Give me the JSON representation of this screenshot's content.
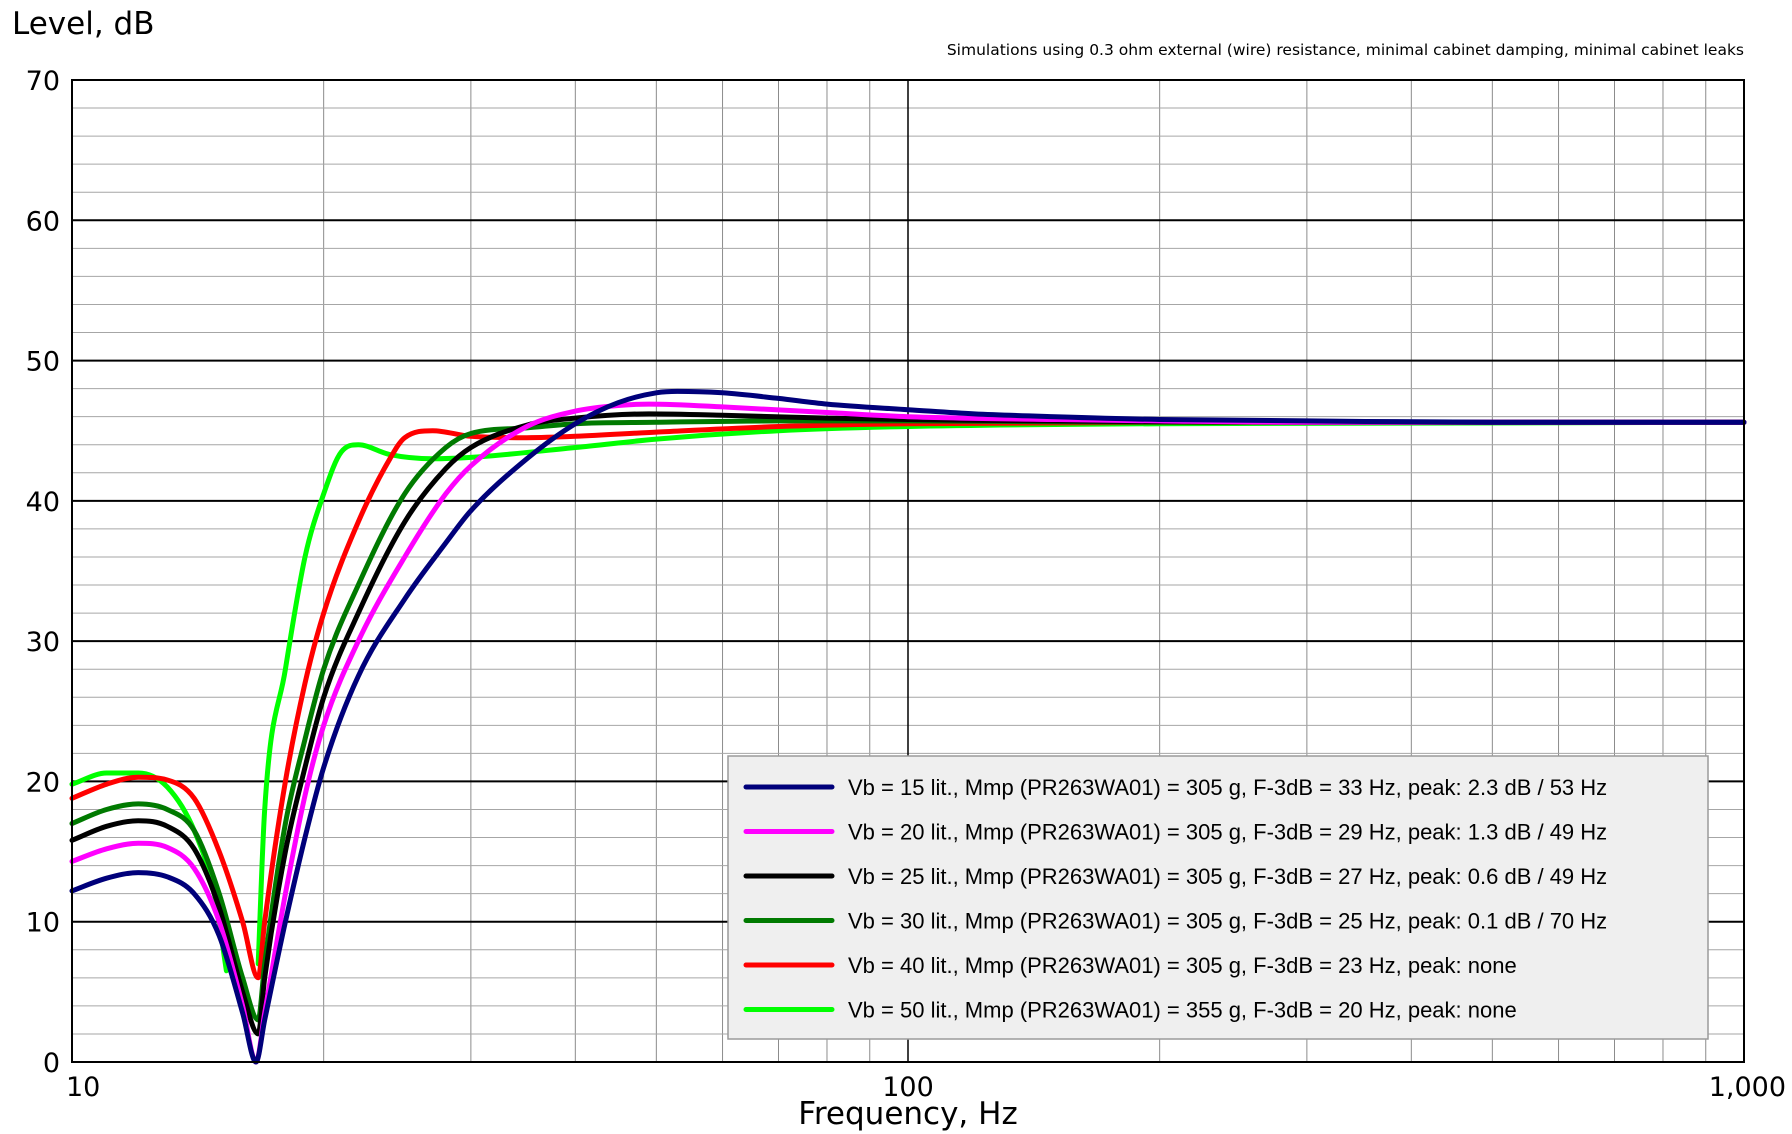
{
  "chart_data": {
    "type": "line",
    "title": "",
    "subtitle": "Simulations using 0.3 ohm external (wire) resistance, minimal cabinet damping, minimal cabinet leaks",
    "xlabel": "Frequency, Hz",
    "ylabel": "Level, dB",
    "x_scale": "log",
    "xlim": [
      10,
      1000
    ],
    "ylim": [
      0,
      70
    ],
    "x_ticks": [
      10,
      100,
      1000
    ],
    "x_tick_labels": [
      "10",
      "100",
      "1,000"
    ],
    "y_ticks": [
      0,
      10,
      20,
      30,
      40,
      50,
      60,
      70
    ],
    "y_tick_labels": [
      "0",
      "10",
      "20",
      "30",
      "40",
      "50",
      "60",
      "70"
    ],
    "grid": true,
    "legend_position": "bottom-right",
    "series": [
      {
        "name": "Vb = 15 lit., Mmp (PR263WA01) = 305 g, F-3dB = 33 Hz, peak: 2.3 dB / 53 Hz",
        "color": "#00007a",
        "points": [
          [
            10,
            12.2
          ],
          [
            11,
            13.1
          ],
          [
            12,
            13.5
          ],
          [
            13,
            13.2
          ],
          [
            14,
            12
          ],
          [
            15,
            9
          ],
          [
            16,
            3.5
          ],
          [
            16.6,
            0
          ],
          [
            17,
            3
          ],
          [
            18,
            10
          ],
          [
            19,
            16
          ],
          [
            20,
            21
          ],
          [
            22,
            27.5
          ],
          [
            25,
            33
          ],
          [
            28,
            37
          ],
          [
            30,
            39.3
          ],
          [
            35,
            43
          ],
          [
            40,
            45.5
          ],
          [
            45,
            47
          ],
          [
            50,
            47.7
          ],
          [
            53,
            47.8
          ],
          [
            60,
            47.7
          ],
          [
            70,
            47.3
          ],
          [
            80,
            46.9
          ],
          [
            100,
            46.5
          ],
          [
            120,
            46.2
          ],
          [
            150,
            46
          ],
          [
            200,
            45.8
          ],
          [
            300,
            45.7
          ],
          [
            500,
            45.6
          ],
          [
            1000,
            45.6
          ]
        ]
      },
      {
        "name": "Vb = 20 lit., Mmp (PR263WA01) = 305 g, F-3dB = 29 Hz, peak: 1.3 dB / 49 Hz",
        "color": "#ff00ff",
        "points": [
          [
            10,
            14.3
          ],
          [
            11,
            15.2
          ],
          [
            12,
            15.6
          ],
          [
            13,
            15.3
          ],
          [
            14,
            13.8
          ],
          [
            15,
            10
          ],
          [
            16,
            4
          ],
          [
            16.6,
            0
          ],
          [
            17,
            3.5
          ],
          [
            18,
            12
          ],
          [
            19,
            19
          ],
          [
            20,
            24
          ],
          [
            22,
            30
          ],
          [
            25,
            36
          ],
          [
            28,
            40.5
          ],
          [
            30,
            42.5
          ],
          [
            35,
            45.3
          ],
          [
            40,
            46.4
          ],
          [
            45,
            46.8
          ],
          [
            49,
            46.9
          ],
          [
            60,
            46.7
          ],
          [
            80,
            46.3
          ],
          [
            100,
            46
          ],
          [
            150,
            45.8
          ],
          [
            200,
            45.7
          ],
          [
            300,
            45.6
          ],
          [
            1000,
            45.6
          ]
        ]
      },
      {
        "name": "Vb = 25 lit., Mmp (PR263WA01) = 305 g, F-3dB = 27 Hz, peak: 0.6 dB / 49 Hz",
        "color": "#000000",
        "points": [
          [
            10,
            15.8
          ],
          [
            11,
            16.8
          ],
          [
            12,
            17.2
          ],
          [
            13,
            16.8
          ],
          [
            14,
            15.2
          ],
          [
            15,
            11
          ],
          [
            16,
            5
          ],
          [
            16.7,
            2
          ],
          [
            17,
            6
          ],
          [
            18,
            15
          ],
          [
            19,
            21
          ],
          [
            20,
            26
          ],
          [
            22,
            32
          ],
          [
            25,
            38.5
          ],
          [
            28,
            42.3
          ],
          [
            30,
            43.8
          ],
          [
            35,
            45.4
          ],
          [
            40,
            45.9
          ],
          [
            49,
            46.2
          ],
          [
            60,
            46.1
          ],
          [
            80,
            45.9
          ],
          [
            100,
            45.8
          ],
          [
            150,
            45.7
          ],
          [
            300,
            45.6
          ],
          [
            1000,
            45.6
          ]
        ]
      },
      {
        "name": "Vb = 30 lit., Mmp (PR263WA01) = 305 g, F-3dB = 25 Hz, peak: 0.1 dB /  70 Hz",
        "color": "#007a00",
        "points": [
          [
            10,
            17
          ],
          [
            11,
            18
          ],
          [
            12,
            18.4
          ],
          [
            13,
            18
          ],
          [
            14,
            16.5
          ],
          [
            15,
            12
          ],
          [
            16,
            6
          ],
          [
            16.7,
            3
          ],
          [
            17,
            7
          ],
          [
            18,
            17
          ],
          [
            19,
            23
          ],
          [
            20,
            28
          ],
          [
            22,
            34
          ],
          [
            25,
            40.5
          ],
          [
            28,
            43.8
          ],
          [
            30,
            44.8
          ],
          [
            35,
            45.2
          ],
          [
            40,
            45.5
          ],
          [
            50,
            45.6
          ],
          [
            70,
            45.7
          ],
          [
            100,
            45.7
          ],
          [
            200,
            45.6
          ],
          [
            1000,
            45.6
          ]
        ]
      },
      {
        "name": "Vb = 40 lit., Mmp (PR263WA01) = 305 g, F-3dB = 23 Hz, peak: none",
        "color": "#ff0000",
        "points": [
          [
            10,
            18.8
          ],
          [
            11,
            19.8
          ],
          [
            12,
            20.3
          ],
          [
            13,
            20.1
          ],
          [
            14,
            18.8
          ],
          [
            15,
            15
          ],
          [
            16,
            10
          ],
          [
            16.7,
            6
          ],
          [
            17,
            10
          ],
          [
            18,
            20
          ],
          [
            19,
            27
          ],
          [
            20,
            32
          ],
          [
            22,
            38.5
          ],
          [
            24,
            43
          ],
          [
            25,
            44.5
          ],
          [
            27,
            45
          ],
          [
            30,
            44.6
          ],
          [
            35,
            44.5
          ],
          [
            40,
            44.6
          ],
          [
            50,
            44.9
          ],
          [
            70,
            45.3
          ],
          [
            100,
            45.5
          ],
          [
            200,
            45.6
          ],
          [
            1000,
            45.6
          ]
        ]
      },
      {
        "name": "Vb = 50 lit., Mmp (PR263WA01) = 355 g, F-3dB = 20 Hz, peak: none",
        "color": "#00ff00",
        "points": [
          [
            10,
            19.8
          ],
          [
            11,
            20.6
          ],
          [
            12,
            20.6
          ],
          [
            13,
            19.6
          ],
          [
            14,
            16.5
          ],
          [
            14.8,
            12
          ],
          [
            15.3,
            6.5
          ]
        ]
      },
      {
        "name": "",
        "color": "#00ff00",
        "points": [
          [
            16.7,
            7
          ],
          [
            17,
            18
          ],
          [
            18,
            28
          ],
          [
            19,
            36
          ],
          [
            20,
            40.5
          ],
          [
            21,
            43.5
          ],
          [
            22,
            44
          ],
          [
            24,
            43.3
          ],
          [
            27,
            43
          ],
          [
            30,
            43.1
          ],
          [
            40,
            43.8
          ],
          [
            50,
            44.4
          ],
          [
            70,
            45
          ],
          [
            100,
            45.3
          ],
          [
            200,
            45.5
          ],
          [
            1000,
            45.6
          ]
        ]
      }
    ]
  }
}
